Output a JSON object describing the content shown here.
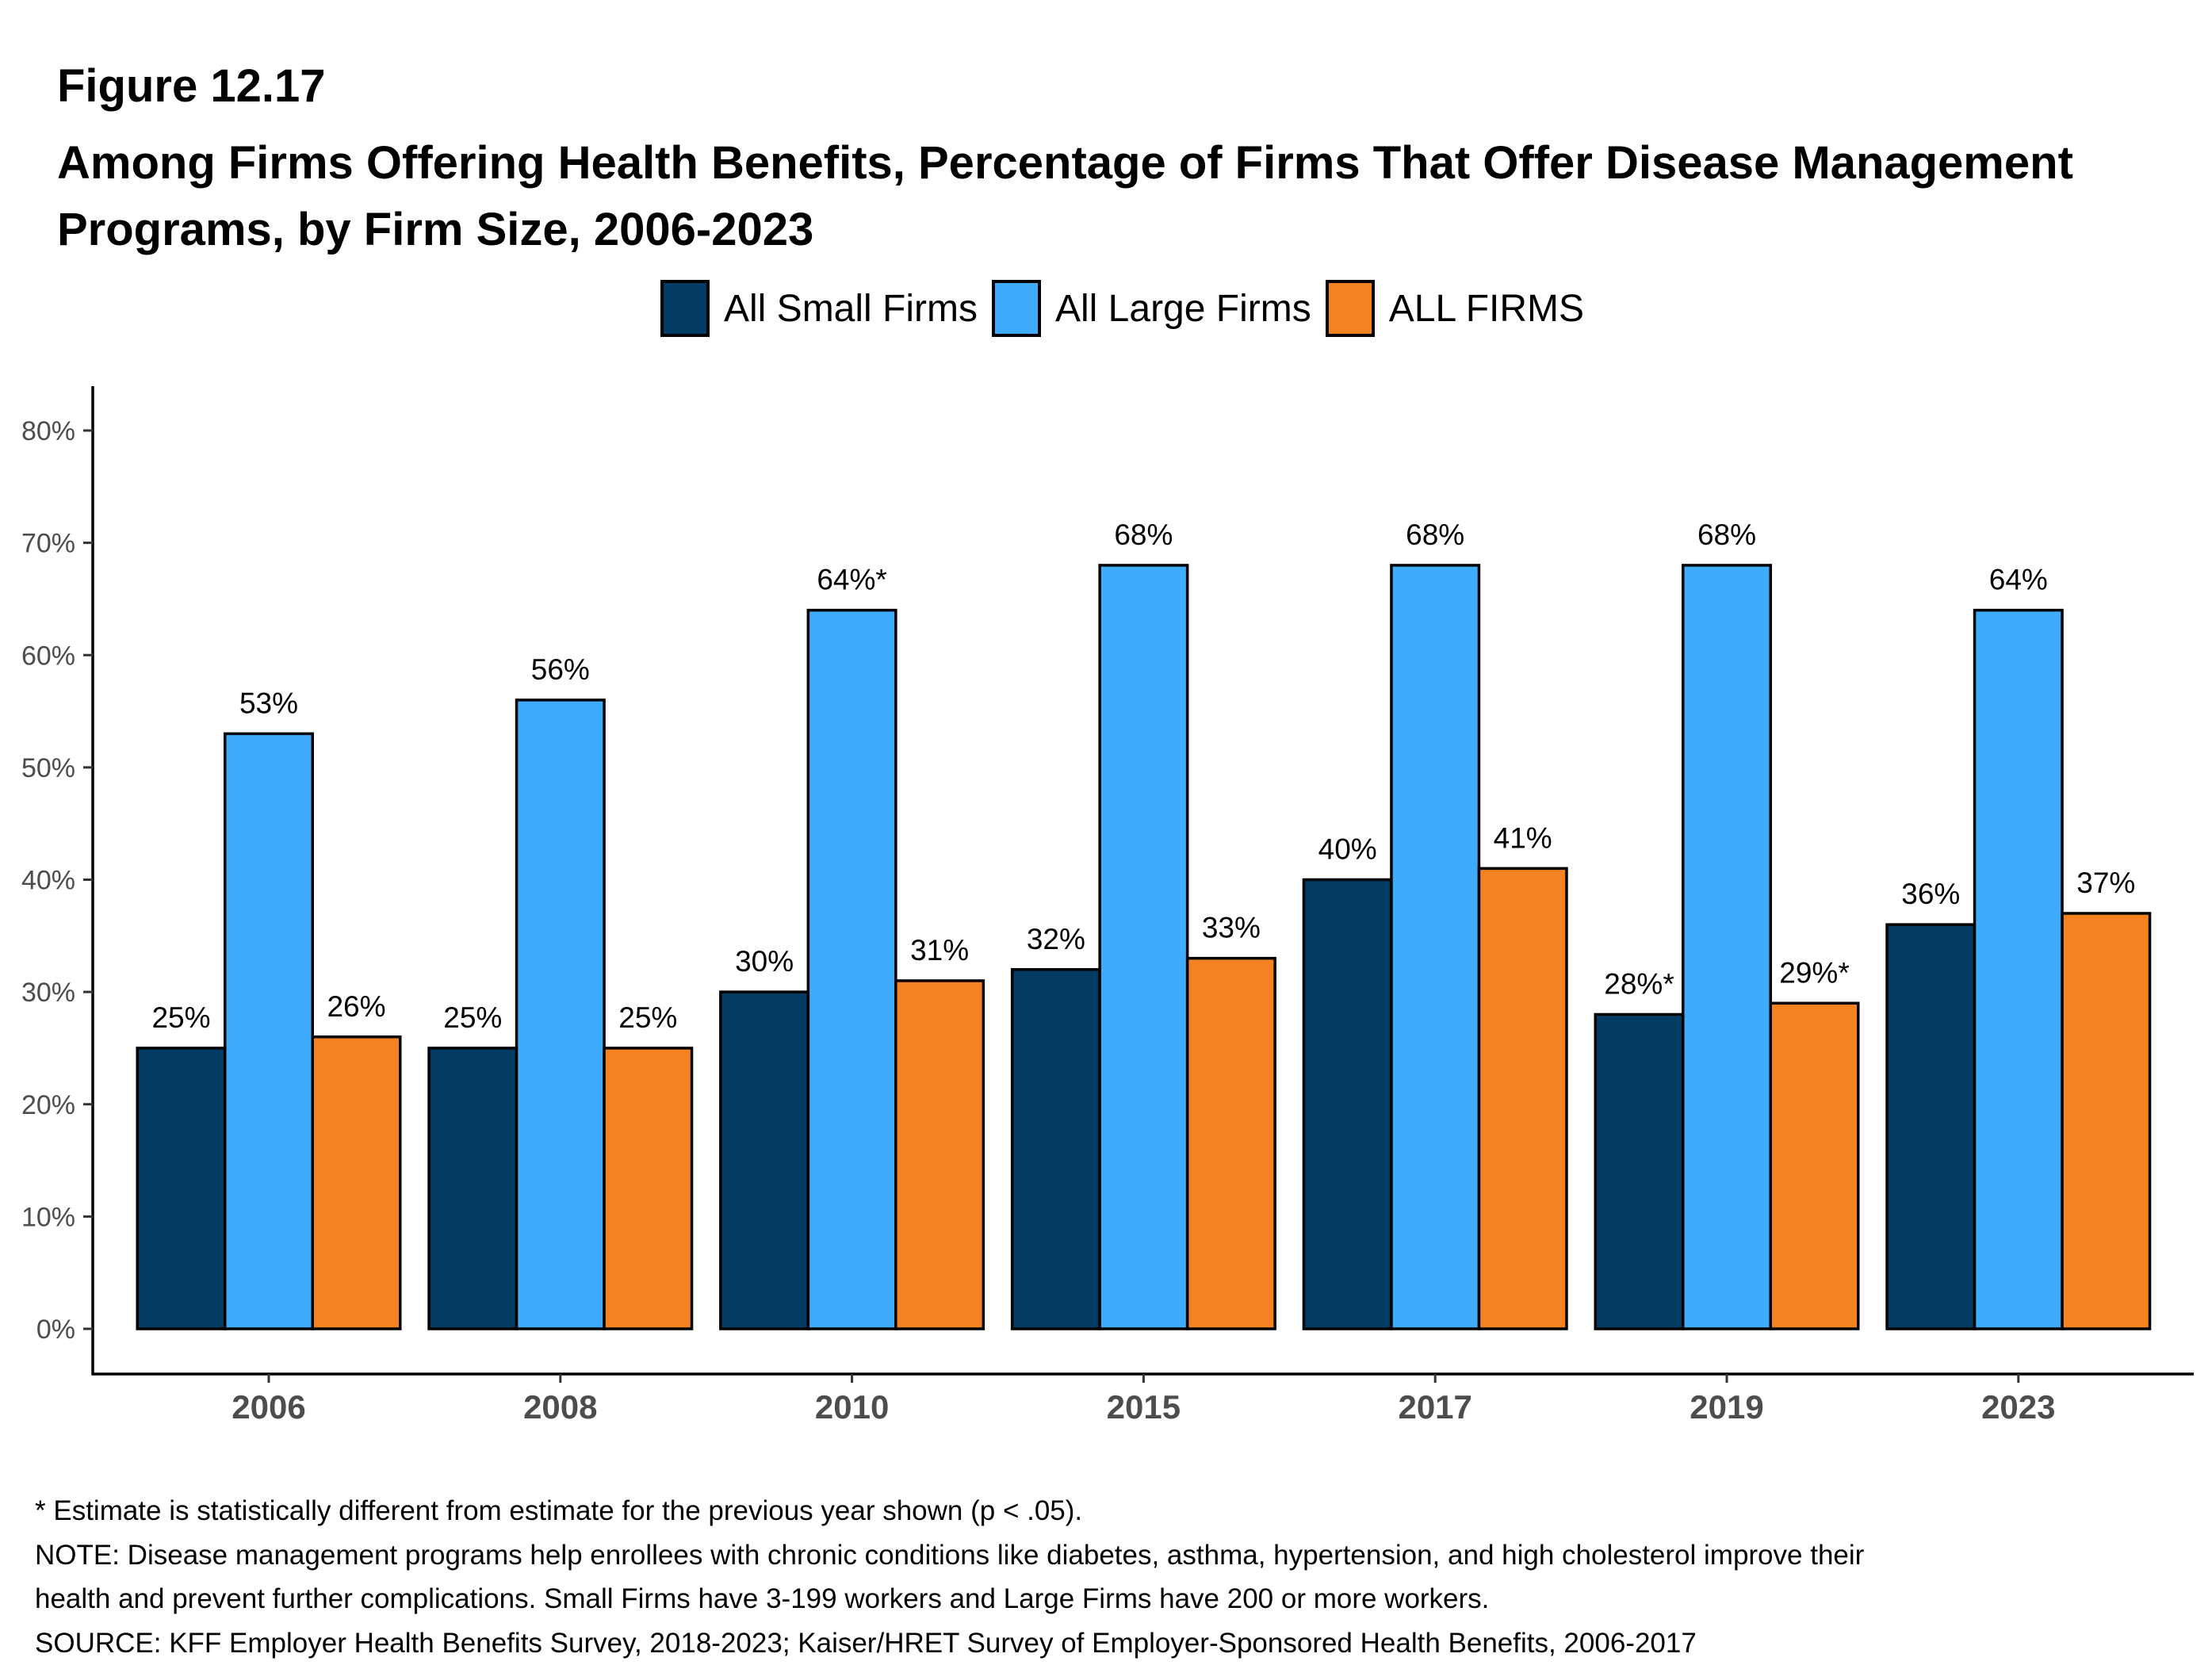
{
  "figure_label": "Figure 12.17",
  "title_line1": "Among Firms Offering Health Benefits, Percentage of Firms That Offer Disease Management",
  "title_line2": "Programs, by Firm Size, 2006-2023",
  "legend": [
    {
      "label": "All Small Firms",
      "color": "#023b63"
    },
    {
      "label": "All Large Firms",
      "color": "#3eabfd"
    },
    {
      "label": "ALL FIRMS",
      "color": "#f48221"
    }
  ],
  "chart_data": {
    "type": "bar",
    "title": "Among Firms Offering Health Benefits, Percentage of Firms That Offer Disease Management Programs, by Firm Size, 2006-2023",
    "xlabel": "",
    "ylabel": "",
    "categories": [
      "2006",
      "2008",
      "2010",
      "2015",
      "2017",
      "2019",
      "2023"
    ],
    "series": [
      {
        "name": "All Small Firms",
        "color": "#023b63",
        "values": [
          25,
          25,
          30,
          32,
          40,
          28,
          36
        ],
        "labels": [
          "25%",
          "25%",
          "30%",
          "32%",
          "40%",
          "28%*",
          "36%"
        ]
      },
      {
        "name": "All Large Firms",
        "color": "#3eabfd",
        "values": [
          53,
          56,
          64,
          68,
          68,
          68,
          64
        ],
        "labels": [
          "53%",
          "56%",
          "64%*",
          "68%",
          "68%",
          "68%",
          "64%"
        ]
      },
      {
        "name": "ALL FIRMS",
        "color": "#f48221",
        "values": [
          26,
          25,
          31,
          33,
          41,
          29,
          37
        ],
        "labels": [
          "26%",
          "25%",
          "31%",
          "33%",
          "41%",
          "29%*",
          "37%"
        ]
      }
    ],
    "ylim": [
      0,
      80
    ],
    "yticks": [
      0,
      10,
      20,
      30,
      40,
      50,
      60,
      70,
      80
    ],
    "ytick_labels": [
      "0%",
      "10%",
      "20%",
      "30%",
      "40%",
      "50%",
      "60%",
      "70%",
      "80%"
    ],
    "grid": false,
    "legend_position": "top-center"
  },
  "footer": {
    "note_asterisk": "* Estimate is statistically different from estimate for the previous year shown (p < .05).",
    "note_line1": "NOTE: Disease management programs help enrollees with chronic conditions like diabetes, asthma, hypertension, and high cholesterol improve their",
    "note_line2": "health and prevent further complications. Small Firms have 3-199 workers and Large Firms have 200 or more workers.",
    "source": "SOURCE: KFF Employer Health Benefits Survey, 2018-2023; Kaiser/HRET Survey of Employer-Sponsored Health Benefits, 2006-2017"
  }
}
